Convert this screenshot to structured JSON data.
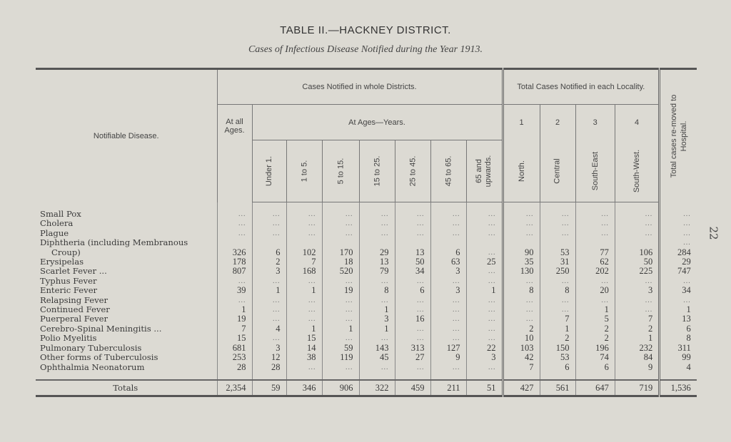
{
  "title": "TABLE II.—HACKNEY DISTRICT.",
  "subtitle": "Cases of Infectious Disease Notified during the Year 1913.",
  "page_number": "22",
  "header": {
    "disease": "Notifiable Disease.",
    "whole_districts": "Cases Notified in whole Districts.",
    "locality": "Total Cases Notified in each Locality.",
    "hospital": "Total cases re-moved to Hospital.",
    "all_ages": "At all Ages.",
    "at_ages": "At Ages—Years.",
    "age_groups": [
      "Under 1.",
      "1 to 5.",
      "5 to 15.",
      "15 to 25.",
      "25 to 45.",
      "45 to 65.",
      "65 and upwards."
    ],
    "locality_numbers": [
      "1",
      "2",
      "3",
      "4"
    ],
    "localities": [
      "North.",
      "Central",
      "South-East",
      "South-West."
    ]
  },
  "rows": [
    {
      "label": "Small Pox",
      "values": [
        "...",
        "...",
        "...",
        "...",
        "...",
        "...",
        "...",
        "...",
        "...",
        "...",
        "...",
        "...",
        "..."
      ]
    },
    {
      "label": "Cholera",
      "values": [
        "...",
        "...",
        "...",
        "...",
        "...",
        "...",
        "...",
        "...",
        "...",
        "...",
        "...",
        "...",
        "..."
      ]
    },
    {
      "label": "Plague",
      "values": [
        "...",
        "...",
        "...",
        "...",
        "...",
        "...",
        "...",
        "...",
        "...",
        "...",
        "...",
        "...",
        "..."
      ]
    },
    {
      "label": "Diphtheria (including Membranous",
      "values": [
        "",
        "",
        "",
        "",
        "",
        "",
        "",
        "",
        "",
        "",
        "",
        "",
        "..."
      ]
    },
    {
      "label": "Croup)",
      "values": [
        "326",
        "6",
        "102",
        "170",
        "29",
        "13",
        "6",
        "...",
        "90",
        "53",
        "77",
        "106",
        "284"
      ]
    },
    {
      "label": "Erysipelas",
      "values": [
        "178",
        "2",
        "7",
        "18",
        "13",
        "50",
        "63",
        "25",
        "35",
        "31",
        "62",
        "50",
        "29"
      ]
    },
    {
      "label": "Scarlet Fever ...",
      "values": [
        "807",
        "3",
        "168",
        "520",
        "79",
        "34",
        "3",
        "...",
        "130",
        "250",
        "202",
        "225",
        "747"
      ]
    },
    {
      "label": "Typhus Fever",
      "values": [
        "...",
        "...",
        "...",
        "...",
        "...",
        "...",
        "...",
        "...",
        "...",
        "...",
        "...",
        "...",
        "..."
      ]
    },
    {
      "label": "Enteric Fever",
      "values": [
        "39",
        "1",
        "1",
        "19",
        "8",
        "6",
        "3",
        "1",
        "8",
        "8",
        "20",
        "3",
        "34"
      ]
    },
    {
      "label": "Relapsing Fever",
      "values": [
        "...",
        "...",
        "...",
        "...",
        "...",
        "...",
        "...",
        "...",
        "...",
        "...",
        "...",
        "...",
        "..."
      ]
    },
    {
      "label": "Continued Fever",
      "values": [
        "1",
        "...",
        "...",
        "...",
        "1",
        "...",
        "...",
        "...",
        "...",
        "...",
        "1",
        "...",
        "1"
      ]
    },
    {
      "label": "Puerperal Fever",
      "values": [
        "19",
        "...",
        "...",
        "...",
        "3",
        "16",
        "...",
        "...",
        "...",
        "7",
        "5",
        "7",
        "13"
      ]
    },
    {
      "label": "Cerebro-Spinal Meningitis ...",
      "values": [
        "7",
        "4",
        "1",
        "1",
        "1",
        "...",
        "...",
        "...",
        "2",
        "1",
        "2",
        "2",
        "6"
      ]
    },
    {
      "label": "Polio Myelitis",
      "values": [
        "15",
        "...",
        "15",
        "...",
        "...",
        "...",
        "...",
        "...",
        "10",
        "2",
        "2",
        "1",
        "8"
      ]
    },
    {
      "label": "Pulmonary Tuberculosis",
      "values": [
        "681",
        "3",
        "14",
        "59",
        "143",
        "313",
        "127",
        "22",
        "103",
        "150",
        "196",
        "232",
        "311"
      ]
    },
    {
      "label": "Other forms of Tuberculosis",
      "values": [
        "253",
        "12",
        "38",
        "119",
        "45",
        "27",
        "9",
        "3",
        "42",
        "53",
        "74",
        "84",
        "99"
      ]
    },
    {
      "label": "Ophthalmia Neonatorum",
      "values": [
        "28",
        "28",
        "...",
        "...",
        "...",
        "...",
        "...",
        "...",
        "7",
        "6",
        "6",
        "9",
        "4"
      ]
    }
  ],
  "totals": {
    "label": "Totals",
    "values": [
      "2,354",
      "59",
      "346",
      "906",
      "322",
      "459",
      "211",
      "51",
      "427",
      "561",
      "647",
      "719",
      "1,536"
    ]
  }
}
